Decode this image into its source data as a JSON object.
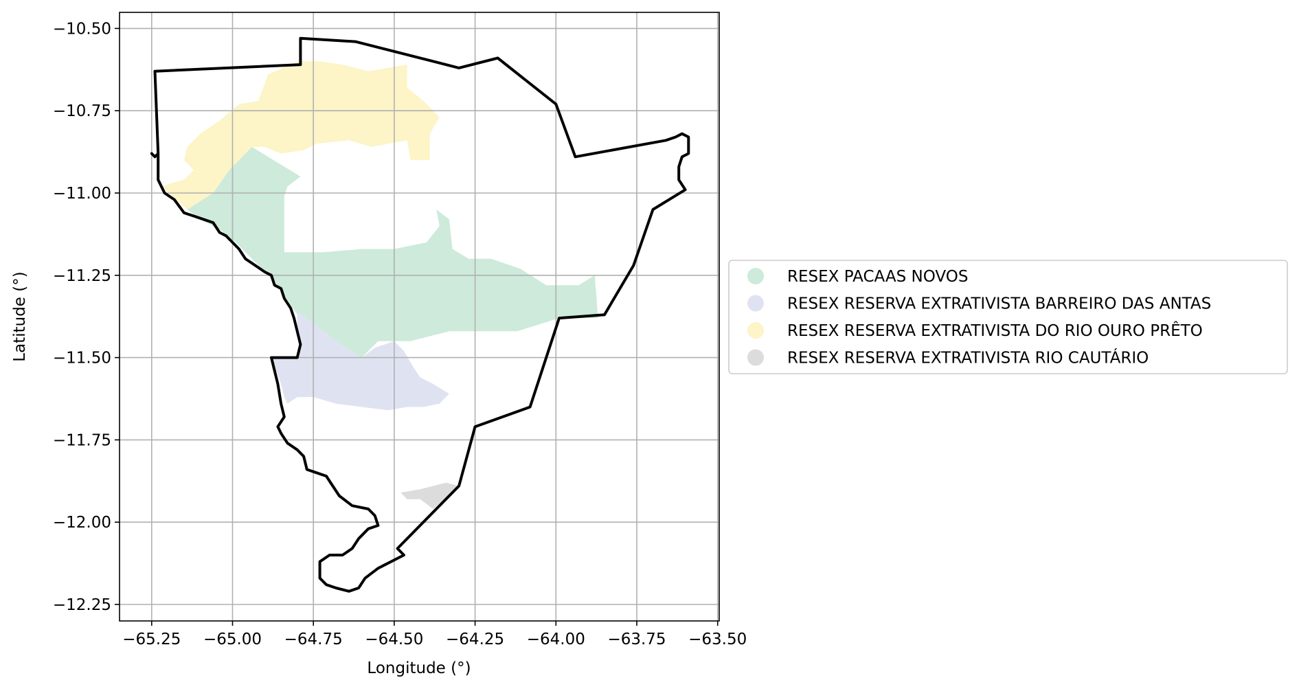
{
  "chart_data": {
    "type": "map",
    "xlabel": "Longitude (°)",
    "ylabel": "Latitude (°)",
    "xlim": [
      -65.34,
      -63.48
    ],
    "ylim": [
      -12.3,
      -10.45
    ],
    "grid": true,
    "x_ticks": [
      {
        "value": -65.25,
        "label": "−65.25"
      },
      {
        "value": -65.0,
        "label": "−65.00"
      },
      {
        "value": -64.75,
        "label": "−64.75"
      },
      {
        "value": -64.5,
        "label": "−64.50"
      },
      {
        "value": -64.25,
        "label": "−64.25"
      },
      {
        "value": -64.0,
        "label": "−64.00"
      },
      {
        "value": -63.75,
        "label": "−63.75"
      },
      {
        "value": -63.5,
        "label": "−63.50"
      }
    ],
    "y_ticks": [
      {
        "value": -10.5,
        "label": "−10.50"
      },
      {
        "value": -10.75,
        "label": "−10.75"
      },
      {
        "value": -11.0,
        "label": "−11.00"
      },
      {
        "value": -11.25,
        "label": "−11.25"
      },
      {
        "value": -11.5,
        "label": "−11.50"
      },
      {
        "value": -11.75,
        "label": "−11.75"
      },
      {
        "value": -12.0,
        "label": "−12.00"
      },
      {
        "value": -12.25,
        "label": "−12.25"
      }
    ],
    "legend_position": "right",
    "boundary": {
      "color": "#000000",
      "coords": [
        [
          -65.25,
          -10.88
        ],
        [
          -65.24,
          -10.89
        ],
        [
          -65.23,
          -10.88
        ],
        [
          -65.23,
          -10.96
        ],
        [
          -65.22,
          -10.98
        ],
        [
          -65.21,
          -11.0
        ],
        [
          -65.18,
          -11.02
        ],
        [
          -65.15,
          -11.06
        ],
        [
          -65.12,
          -11.07
        ],
        [
          -65.09,
          -11.08
        ],
        [
          -65.06,
          -11.09
        ],
        [
          -65.04,
          -11.12
        ],
        [
          -65.02,
          -11.13
        ],
        [
          -65.0,
          -11.15
        ],
        [
          -64.98,
          -11.17
        ],
        [
          -64.96,
          -11.2
        ],
        [
          -64.93,
          -11.22
        ],
        [
          -64.9,
          -11.24
        ],
        [
          -64.88,
          -11.25
        ],
        [
          -64.87,
          -11.28
        ],
        [
          -64.85,
          -11.29
        ],
        [
          -64.84,
          -11.32
        ],
        [
          -64.82,
          -11.35
        ],
        [
          -64.81,
          -11.38
        ],
        [
          -64.8,
          -11.42
        ],
        [
          -64.79,
          -11.46
        ],
        [
          -64.8,
          -11.5
        ],
        [
          -64.88,
          -11.5
        ],
        [
          -64.86,
          -11.58
        ],
        [
          -64.85,
          -11.64
        ],
        [
          -64.84,
          -11.68
        ],
        [
          -64.86,
          -11.71
        ],
        [
          -64.85,
          -11.73
        ],
        [
          -64.83,
          -11.76
        ],
        [
          -64.8,
          -11.78
        ],
        [
          -64.78,
          -11.8
        ],
        [
          -64.77,
          -11.84
        ],
        [
          -64.74,
          -11.85
        ],
        [
          -64.71,
          -11.86
        ],
        [
          -64.69,
          -11.89
        ],
        [
          -64.67,
          -11.92
        ],
        [
          -64.63,
          -11.95
        ],
        [
          -64.58,
          -11.96
        ],
        [
          -64.56,
          -11.98
        ],
        [
          -64.55,
          -12.01
        ],
        [
          -64.58,
          -12.02
        ],
        [
          -64.61,
          -12.05
        ],
        [
          -64.63,
          -12.08
        ],
        [
          -64.66,
          -12.1
        ],
        [
          -64.7,
          -12.1
        ],
        [
          -64.73,
          -12.12
        ],
        [
          -64.73,
          -12.17
        ],
        [
          -64.71,
          -12.19
        ],
        [
          -64.68,
          -12.2
        ],
        [
          -64.64,
          -12.21
        ],
        [
          -64.61,
          -12.2
        ],
        [
          -64.59,
          -12.17
        ],
        [
          -64.55,
          -12.14
        ],
        [
          -64.47,
          -12.1
        ],
        [
          -64.49,
          -12.08
        ],
        [
          -64.3,
          -11.89
        ],
        [
          -64.25,
          -11.71
        ],
        [
          -64.08,
          -11.65
        ],
        [
          -63.99,
          -11.38
        ],
        [
          -63.85,
          -11.37
        ],
        [
          -63.76,
          -11.22
        ],
        [
          -63.7,
          -11.05
        ],
        [
          -63.6,
          -10.99
        ],
        [
          -63.62,
          -10.96
        ],
        [
          -63.62,
          -10.92
        ],
        [
          -63.61,
          -10.89
        ],
        [
          -63.59,
          -10.88
        ],
        [
          -63.59,
          -10.83
        ],
        [
          -63.61,
          -10.82
        ],
        [
          -63.63,
          -10.83
        ],
        [
          -63.66,
          -10.84
        ],
        [
          -63.94,
          -10.89
        ],
        [
          -64.0,
          -10.73
        ],
        [
          -64.18,
          -10.59
        ],
        [
          -64.3,
          -10.62
        ],
        [
          -64.62,
          -10.54
        ],
        [
          -64.79,
          -10.53
        ],
        [
          -64.79,
          -10.61
        ],
        [
          -65.24,
          -10.63
        ],
        [
          -65.23,
          -10.88
        ]
      ]
    },
    "series": [
      {
        "name": "RESEX PACAAS NOVOS",
        "color": "#cdeadb",
        "coords": [
          [
            -64.94,
            -10.86
          ],
          [
            -64.79,
            -10.95
          ],
          [
            -64.83,
            -10.98
          ],
          [
            -64.84,
            -11.01
          ],
          [
            -64.84,
            -11.18
          ],
          [
            -64.72,
            -11.18
          ],
          [
            -64.6,
            -11.17
          ],
          [
            -64.5,
            -11.17
          ],
          [
            -64.4,
            -11.15
          ],
          [
            -64.36,
            -11.1
          ],
          [
            -64.37,
            -11.05
          ],
          [
            -64.33,
            -11.08
          ],
          [
            -64.32,
            -11.17
          ],
          [
            -64.27,
            -11.2
          ],
          [
            -64.2,
            -11.2
          ],
          [
            -64.11,
            -11.23
          ],
          [
            -64.03,
            -11.28
          ],
          [
            -63.93,
            -11.28
          ],
          [
            -63.88,
            -11.25
          ],
          [
            -63.87,
            -11.38
          ],
          [
            -63.99,
            -11.38
          ],
          [
            -64.12,
            -11.42
          ],
          [
            -64.25,
            -11.42
          ],
          [
            -64.33,
            -11.42
          ],
          [
            -64.45,
            -11.45
          ],
          [
            -64.55,
            -11.45
          ],
          [
            -64.6,
            -11.5
          ],
          [
            -64.65,
            -11.48
          ],
          [
            -64.73,
            -11.41
          ],
          [
            -64.8,
            -11.37
          ],
          [
            -64.82,
            -11.34
          ],
          [
            -64.84,
            -11.31
          ],
          [
            -64.87,
            -11.27
          ],
          [
            -64.91,
            -11.23
          ],
          [
            -64.95,
            -11.19
          ],
          [
            -64.99,
            -11.15
          ],
          [
            -65.04,
            -11.11
          ],
          [
            -65.1,
            -11.08
          ],
          [
            -65.14,
            -11.05
          ],
          [
            -65.06,
            -11.0
          ],
          [
            -65.01,
            -10.93
          ]
        ]
      },
      {
        "name": "RESEX RESERVA EXTRATIVISTA BARREIRO DAS ANTAS",
        "color": "#dfe3f1",
        "coords": [
          [
            -64.8,
            -11.36
          ],
          [
            -64.73,
            -11.41
          ],
          [
            -64.65,
            -11.47
          ],
          [
            -64.6,
            -11.5
          ],
          [
            -64.56,
            -11.47
          ],
          [
            -64.5,
            -11.45
          ],
          [
            -64.47,
            -11.48
          ],
          [
            -64.44,
            -11.53
          ],
          [
            -64.42,
            -11.56
          ],
          [
            -64.38,
            -11.58
          ],
          [
            -64.33,
            -11.61
          ],
          [
            -64.36,
            -11.64
          ],
          [
            -64.41,
            -11.65
          ],
          [
            -64.46,
            -11.65
          ],
          [
            -64.52,
            -11.66
          ],
          [
            -64.6,
            -11.65
          ],
          [
            -64.68,
            -11.64
          ],
          [
            -64.75,
            -11.62
          ],
          [
            -64.8,
            -11.62
          ],
          [
            -64.83,
            -11.64
          ],
          [
            -64.84,
            -11.62
          ],
          [
            -64.85,
            -11.58
          ],
          [
            -64.88,
            -11.5
          ],
          [
            -64.8,
            -11.5
          ],
          [
            -64.79,
            -11.46
          ],
          [
            -64.8,
            -11.42
          ]
        ]
      },
      {
        "name": "RESEX RESERVA EXTRATIVISTA DO RIO OURO PRÊTO",
        "color": "#fdf4c7",
        "coords": [
          [
            -65.22,
            -10.98
          ],
          [
            -65.14,
            -11.05
          ],
          [
            -65.06,
            -11.0
          ],
          [
            -65.01,
            -10.93
          ],
          [
            -64.94,
            -10.86
          ],
          [
            -64.9,
            -10.86
          ],
          [
            -64.85,
            -10.88
          ],
          [
            -64.78,
            -10.87
          ],
          [
            -64.74,
            -10.85
          ],
          [
            -64.64,
            -10.84
          ],
          [
            -64.57,
            -10.86
          ],
          [
            -64.46,
            -10.84
          ],
          [
            -64.45,
            -10.9
          ],
          [
            -64.39,
            -10.9
          ],
          [
            -64.39,
            -10.82
          ],
          [
            -64.36,
            -10.77
          ],
          [
            -64.41,
            -10.72
          ],
          [
            -64.46,
            -10.68
          ],
          [
            -64.46,
            -10.61
          ],
          [
            -64.58,
            -10.63
          ],
          [
            -64.66,
            -10.61
          ],
          [
            -64.73,
            -10.6
          ],
          [
            -64.8,
            -10.6
          ],
          [
            -64.89,
            -10.64
          ],
          [
            -64.92,
            -10.72
          ],
          [
            -64.98,
            -10.73
          ],
          [
            -65.04,
            -10.78
          ],
          [
            -65.1,
            -10.82
          ],
          [
            -65.14,
            -10.86
          ],
          [
            -65.15,
            -10.9
          ],
          [
            -65.12,
            -10.93
          ],
          [
            -65.15,
            -10.96
          ],
          [
            -65.19,
            -10.97
          ]
        ]
      },
      {
        "name": "RESEX RESERVA EXTRATIVISTA RIO CAUTÁRIO",
        "color": "#dcdcdc",
        "coords": [
          [
            -64.48,
            -11.91
          ],
          [
            -64.42,
            -11.9
          ],
          [
            -64.34,
            -11.88
          ],
          [
            -64.3,
            -11.89
          ],
          [
            -64.38,
            -11.96
          ],
          [
            -64.42,
            -11.93
          ],
          [
            -64.46,
            -11.93
          ]
        ]
      }
    ]
  }
}
